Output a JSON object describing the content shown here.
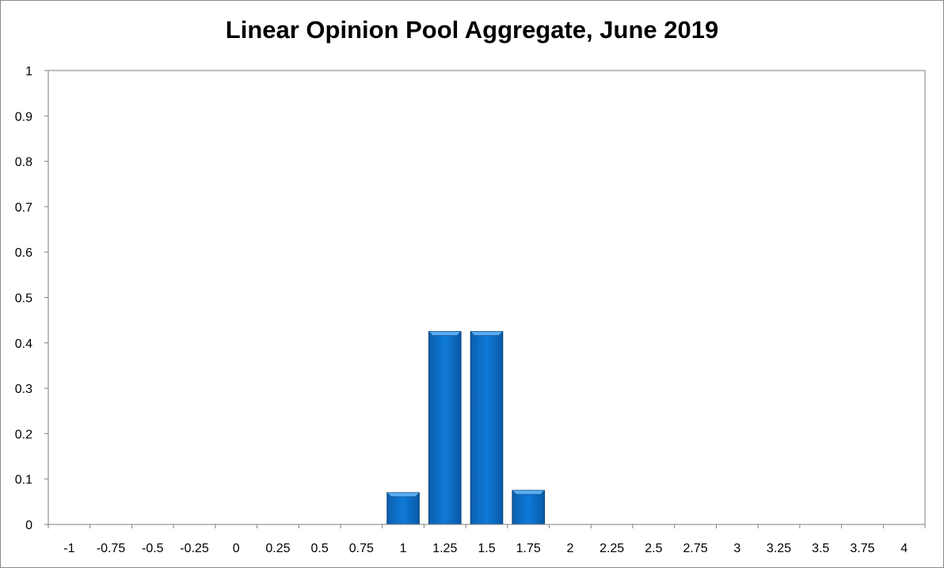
{
  "chart_data": {
    "type": "bar",
    "title": "Linear Opinion Pool Aggregate, June 2019",
    "xlabel": "",
    "ylabel": "",
    "categories": [
      "-1",
      "-0.75",
      "-0.5",
      "-0.25",
      "0",
      "0.25",
      "0.5",
      "0.75",
      "1",
      "1.25",
      "1.5",
      "1.75",
      "2",
      "2.25",
      "2.5",
      "2.75",
      "3",
      "3.25",
      "3.5",
      "3.75",
      "4"
    ],
    "values": [
      0,
      0,
      0,
      0,
      0,
      0,
      0,
      0,
      0.07,
      0.425,
      0.425,
      0.075,
      0,
      0,
      0,
      0,
      0,
      0,
      0,
      0,
      0
    ],
    "ylim": [
      0,
      1
    ],
    "yticks": [
      "0",
      "0.1",
      "0.2",
      "0.3",
      "0.4",
      "0.5",
      "0.6",
      "0.7",
      "0.8",
      "0.9",
      "1"
    ],
    "grid": false,
    "legend": "none",
    "colors": {
      "bar": "#0a6fc8",
      "bar_top": "#5aaef0",
      "bar_edge": "#06417a",
      "axis": "#7f7f7f"
    }
  }
}
